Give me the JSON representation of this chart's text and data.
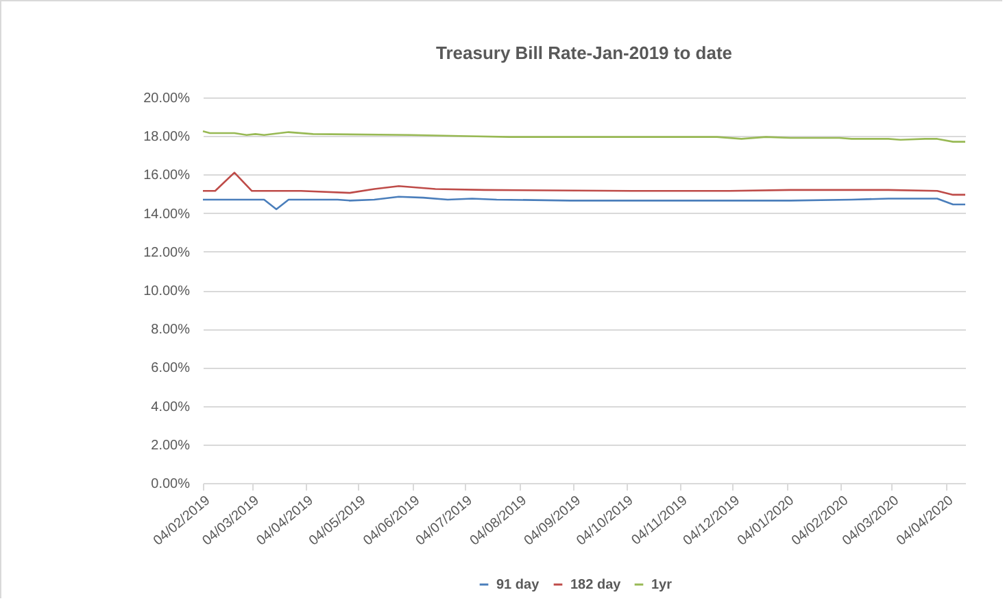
{
  "chart_data": {
    "type": "line",
    "title": "Treasury Bill Rate-Jan-2019 to date",
    "xlim": [
      "2019-02-04",
      "2020-04-15"
    ],
    "xticks": [
      {
        "value": "2019-02-04",
        "label": "04/02/2019"
      },
      {
        "value": "2019-03-04",
        "label": "04/03/2019"
      },
      {
        "value": "2019-04-04",
        "label": "04/04/2019"
      },
      {
        "value": "2019-05-04",
        "label": "04/05/2019"
      },
      {
        "value": "2019-06-04",
        "label": "04/06/2019"
      },
      {
        "value": "2019-07-04",
        "label": "04/07/2019"
      },
      {
        "value": "2019-08-04",
        "label": "04/08/2019"
      },
      {
        "value": "2019-09-04",
        "label": "04/09/2019"
      },
      {
        "value": "2019-10-04",
        "label": "04/10/2019"
      },
      {
        "value": "2019-11-04",
        "label": "04/11/2019"
      },
      {
        "value": "2019-12-04",
        "label": "04/12/2019"
      },
      {
        "value": "2020-01-04",
        "label": "04/01/2020"
      },
      {
        "value": "2020-02-04",
        "label": "04/02/2020"
      },
      {
        "value": "2020-03-04",
        "label": "04/03/2020"
      },
      {
        "value": "2020-04-04",
        "label": "04/04/2020"
      }
    ],
    "ylim": [
      0,
      20
    ],
    "yticks": [
      {
        "value": 0,
        "label": "0.00%"
      },
      {
        "value": 2,
        "label": "2.00%"
      },
      {
        "value": 4,
        "label": "4.00%"
      },
      {
        "value": 6,
        "label": "6.00%"
      },
      {
        "value": 8,
        "label": "8.00%"
      },
      {
        "value": 10,
        "label": "10.00%"
      },
      {
        "value": 12,
        "label": "12.00%"
      },
      {
        "value": 14,
        "label": "14.00%"
      },
      {
        "value": 16,
        "label": "16.00%"
      },
      {
        "value": 18,
        "label": "18.00%"
      },
      {
        "value": 20,
        "label": "20.00%"
      }
    ],
    "grid": "y",
    "legend": "bottom",
    "marker": "none",
    "line_style": "solid",
    "series": [
      {
        "name": "91 day",
        "color": "#4a7ebb",
        "x": [
          "2019-02-04",
          "2019-03-11",
          "2019-03-18",
          "2019-03-25",
          "2019-04-22",
          "2019-04-29",
          "2019-05-13",
          "2019-05-27",
          "2019-06-10",
          "2019-06-24",
          "2019-07-08",
          "2019-07-22",
          "2019-09-02",
          "2019-10-07",
          "2019-11-04",
          "2019-12-02",
          "2020-01-06",
          "2020-02-10",
          "2020-03-02",
          "2020-03-30",
          "2020-04-08",
          "2020-04-15"
        ],
        "values": [
          14.7,
          14.7,
          14.2,
          14.7,
          14.7,
          14.65,
          14.7,
          14.85,
          14.8,
          14.7,
          14.75,
          14.7,
          14.65,
          14.65,
          14.65,
          14.65,
          14.65,
          14.7,
          14.75,
          14.75,
          14.45,
          14.45
        ]
      },
      {
        "name": "182 day",
        "color": "#be4b48",
        "x": [
          "2019-02-04",
          "2019-02-11",
          "2019-02-22",
          "2019-03-04",
          "2019-04-01",
          "2019-04-29",
          "2019-05-13",
          "2019-05-27",
          "2019-06-17",
          "2019-07-15",
          "2019-10-07",
          "2019-12-02",
          "2020-01-06",
          "2020-03-02",
          "2020-03-30",
          "2020-04-08",
          "2020-04-15"
        ],
        "values": [
          15.15,
          15.15,
          16.1,
          15.15,
          15.15,
          15.05,
          15.25,
          15.4,
          15.25,
          15.2,
          15.15,
          15.15,
          15.2,
          15.2,
          15.15,
          14.95,
          14.95
        ]
      },
      {
        "name": "1yr",
        "color": "#98b954",
        "x": [
          "2019-02-04",
          "2019-02-08",
          "2019-02-22",
          "2019-03-01",
          "2019-03-06",
          "2019-03-11",
          "2019-03-25",
          "2019-04-08",
          "2019-06-03",
          "2019-07-01",
          "2019-07-29",
          "2019-08-26",
          "2019-11-25",
          "2019-12-09",
          "2019-12-23",
          "2020-01-06",
          "2020-02-03",
          "2020-02-10",
          "2020-03-02",
          "2020-03-09",
          "2020-03-23",
          "2020-03-30",
          "2020-04-08",
          "2020-04-15"
        ],
        "values": [
          18.25,
          18.15,
          18.15,
          18.05,
          18.1,
          18.05,
          18.2,
          18.1,
          18.05,
          18.0,
          17.95,
          17.95,
          17.95,
          17.85,
          17.95,
          17.9,
          17.9,
          17.85,
          17.85,
          17.8,
          17.85,
          17.85,
          17.7,
          17.7
        ]
      }
    ]
  }
}
